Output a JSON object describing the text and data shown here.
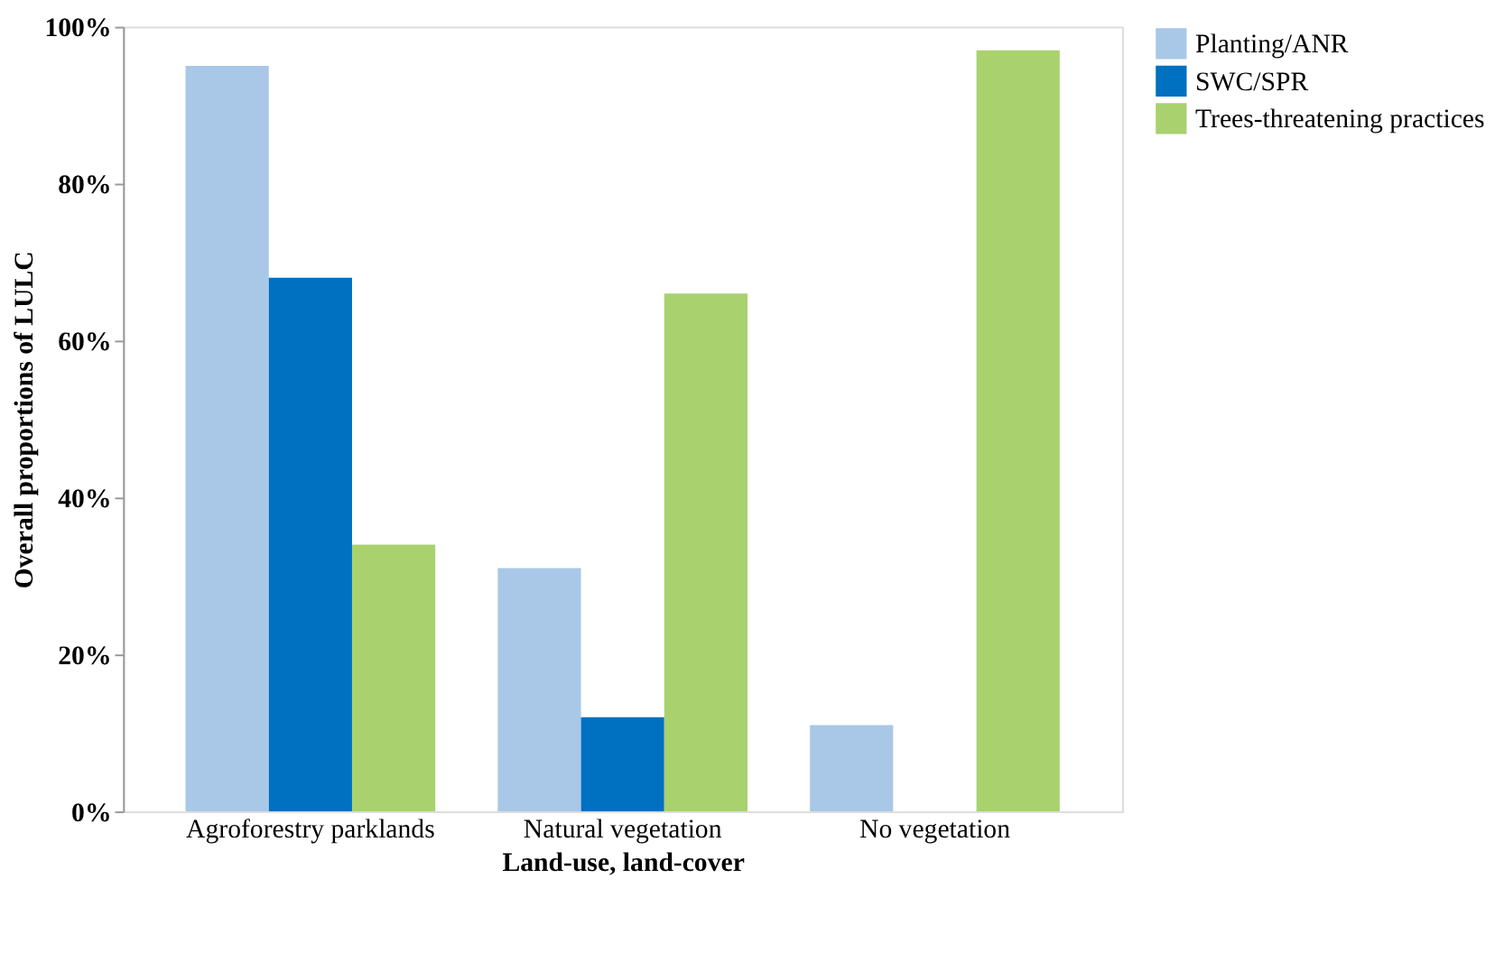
{
  "chart_data": {
    "type": "bar",
    "xlabel": "Land-use, land-cover",
    "ylabel": "Overall proportions of LULC",
    "categories": [
      "Agroforestry parklands",
      "Natural vegetation",
      "No vegetation"
    ],
    "series": [
      {
        "name": "Planting/ANR",
        "color": "#a9c8e8",
        "values": [
          95,
          31,
          11
        ]
      },
      {
        "name": "SWC/SPR",
        "color": "#0070c0",
        "values": [
          68,
          12,
          0
        ]
      },
      {
        "name": "Trees-threatening practices",
        "color": "#a9d16e",
        "values": [
          34,
          66,
          97
        ]
      }
    ],
    "ylim": [
      0,
      100
    ],
    "yticks": [
      {
        "value": 0,
        "label": "0%"
      },
      {
        "value": 20,
        "label": "20%"
      },
      {
        "value": 40,
        "label": "40%"
      },
      {
        "value": 60,
        "label": "60%"
      },
      {
        "value": 80,
        "label": "80%"
      },
      {
        "value": 100,
        "label": "100%"
      }
    ],
    "grid": false,
    "legend": "top right"
  }
}
